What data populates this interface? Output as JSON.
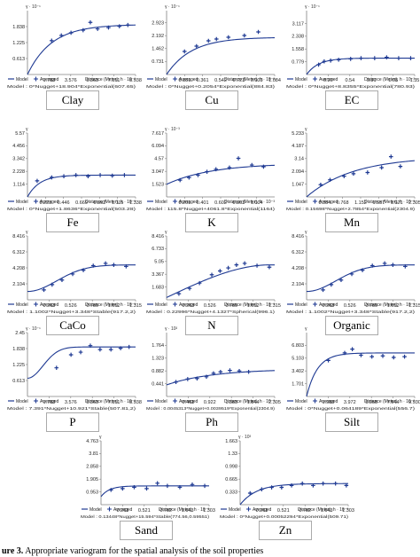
{
  "caption": {
    "label": "ure 3.",
    "text": "Appropriate variogram for the spatial analysis of the soil properties"
  },
  "colors": {
    "curve": "#1f3a93",
    "points": "#1f3a93",
    "axis": "#808080",
    "name_box_border": "#aaaaaa"
  },
  "legend_labels": {
    "model": "Model",
    "averaged": "Averaged"
  },
  "chart_data": [
    {
      "property": "Clay",
      "type": "scatter",
      "y_exponent": "γ · 10⁻¹",
      "x_axis_title": "Distance (Meter), h · 10⁻²",
      "x_ticks": [
        "1.788",
        "3.576",
        "5.363",
        "7.151",
        "8.938"
      ],
      "x_tick_values": [
        1.788,
        3.576,
        5.363,
        7.151,
        8.938
      ],
      "xlim": [
        0,
        8.938
      ],
      "y_ticks": [
        "0.613",
        "1.225",
        "1.838"
      ],
      "y_tick_values": [
        0.613,
        1.225,
        1.838
      ],
      "ylim": [
        0,
        2.45
      ],
      "points": [
        [
          2.0,
          1.3
        ],
        [
          2.8,
          1.5
        ],
        [
          3.6,
          1.6
        ],
        [
          4.6,
          1.7
        ],
        [
          5.2,
          2.0
        ],
        [
          5.8,
          1.75
        ],
        [
          6.7,
          1.8
        ],
        [
          7.6,
          1.85
        ],
        [
          8.3,
          1.9
        ]
      ],
      "model": {
        "sill": 1.92,
        "range": 2.0,
        "nugget": 0.0,
        "shape": "exp"
      },
      "model_text": "Model : 0*Nugget+18.904*Exponential(607.65)"
    },
    {
      "property": "Cu",
      "type": "scatter",
      "y_exponent": "γ · 10⁻¹",
      "x_axis_title": "Distance (Meter), h · 10⁻³",
      "x_ticks": [
        "0.181",
        "0.361",
        "0.542",
        "0.723",
        "0.903",
        "1.084"
      ],
      "x_tick_values": [
        0.181,
        0.361,
        0.542,
        0.723,
        0.903,
        1.084
      ],
      "xlim": [
        0,
        1.084
      ],
      "y_ticks": [
        "0.731",
        "1.462",
        "2.192",
        "2.923"
      ],
      "y_tick_values": [
        0.731,
        1.462,
        2.192,
        2.923
      ],
      "ylim": [
        0,
        3.6
      ],
      "points": [
        [
          0.18,
          1.3
        ],
        [
          0.3,
          1.6
        ],
        [
          0.42,
          1.9
        ],
        [
          0.5,
          2.0
        ],
        [
          0.62,
          2.1
        ],
        [
          0.78,
          2.2
        ],
        [
          0.92,
          2.4
        ]
      ],
      "model": {
        "sill": 2.1,
        "range": 0.25,
        "nugget": 0.0,
        "shape": "exp"
      },
      "model_text": "Model : 0*Nugget+0.2054*Exponential(884.83)"
    },
    {
      "property": "EC",
      "type": "scatter",
      "y_exponent": "γ · 10⁻¹",
      "x_axis_title": "Distance (Meter), h · 10⁻³",
      "x_ticks": [
        "0.27",
        "0.54",
        "0.81",
        "1.08",
        "1.35"
      ],
      "x_tick_values": [
        0.27,
        0.54,
        0.81,
        1.08,
        1.35
      ],
      "xlim": [
        0,
        1.35
      ],
      "y_ticks": [
        "0.779",
        "1.558",
        "2.338",
        "3.117"
      ],
      "y_tick_values": [
        0.779,
        1.558,
        2.338,
        3.117
      ],
      "ylim": [
        0,
        3.9
      ],
      "points": [
        [
          0.15,
          0.6
        ],
        [
          0.22,
          0.8
        ],
        [
          0.3,
          0.85
        ],
        [
          0.4,
          0.9
        ],
        [
          0.55,
          0.95
        ],
        [
          0.68,
          1.0
        ],
        [
          0.85,
          1.0
        ],
        [
          1.0,
          1.05
        ],
        [
          1.15,
          1.0
        ],
        [
          1.3,
          1.0
        ]
      ],
      "model": {
        "sill": 1.0,
        "range": 0.15,
        "nugget": 0.0,
        "shape": "exp"
      },
      "model_text": "Model : 0*Nugget+8.8355*Exponential(780.93)"
    },
    {
      "property": "Fe",
      "type": "scatter",
      "y_exponent": "γ",
      "x_axis_title": "Distance (Meter), h · 10⁻³",
      "x_ticks": [
        "0.223",
        "0.446",
        "0.669",
        "0.892",
        "1.115",
        "1.338"
      ],
      "x_tick_values": [
        0.223,
        0.446,
        0.669,
        0.892,
        1.115,
        1.338
      ],
      "xlim": [
        0,
        1.338
      ],
      "y_ticks": [
        "1.114",
        "2.228",
        "3.342",
        "4.456",
        "5.57"
      ],
      "y_tick_values": [
        1.114,
        2.228,
        3.342,
        4.456,
        5.57
      ],
      "ylim": [
        0,
        5.57
      ],
      "points": [
        [
          0.12,
          1.4
        ],
        [
          0.3,
          1.7
        ],
        [
          0.45,
          1.8
        ],
        [
          0.6,
          1.9
        ],
        [
          0.75,
          1.8
        ],
        [
          0.9,
          1.9
        ],
        [
          1.05,
          1.85
        ],
        [
          1.2,
          1.9
        ]
      ],
      "model": {
        "sill": 1.9,
        "range": 0.15,
        "nugget": 0.0,
        "shape": "exp"
      },
      "model_text": "Model : 0*Nugget+1.8636*Exponential(503.28)"
    },
    {
      "property": "K",
      "type": "scatter",
      "y_exponent": "γ · 10⁻³",
      "x_axis_title": "Distance (Meter), h · 10⁻³",
      "x_ticks": [
        "0.201",
        "0.401",
        "0.602",
        "0.803",
        "1.004"
      ],
      "x_tick_values": [
        0.201,
        0.401,
        0.602,
        0.803,
        1.004
      ],
      "xlim": [
        0,
        1.204
      ],
      "y_ticks": [
        "1.523",
        "3.047",
        "4.57",
        "6.094",
        "7.617"
      ],
      "y_tick_values": [
        1.523,
        3.047,
        4.57,
        6.094,
        7.617
      ],
      "ylim": [
        0,
        7.617
      ],
      "points": [
        [
          0.15,
          2.0
        ],
        [
          0.25,
          2.3
        ],
        [
          0.35,
          2.6
        ],
        [
          0.45,
          3.0
        ],
        [
          0.55,
          3.3
        ],
        [
          0.7,
          3.5
        ],
        [
          0.8,
          4.6
        ],
        [
          0.95,
          3.8
        ],
        [
          1.08,
          3.6
        ]
      ],
      "model": {
        "sill": 4.0,
        "range": 0.5,
        "nugget": 1.5,
        "shape": "exp"
      },
      "model_text": "Model : 115.8*Nugget+4061.8*Exponential(1164)"
    },
    {
      "property": "Mn",
      "type": "scatter",
      "y_exponent": "γ",
      "x_axis_title": "Distance (Meter), h · 10⁻³",
      "x_ticks": [
        "0.384",
        "0.768",
        "1.152",
        "1.537",
        "1.921",
        "2.305"
      ],
      "x_tick_values": [
        0.384,
        0.768,
        1.152,
        1.537,
        1.921,
        2.305
      ],
      "xlim": [
        0,
        2.305
      ],
      "y_ticks": [
        "1.047",
        "2.094",
        "3.14",
        "4.187",
        "5.233"
      ],
      "y_tick_values": [
        1.047,
        2.094,
        3.14,
        4.187,
        5.233
      ],
      "ylim": [
        0,
        5.233
      ],
      "points": [
        [
          0.3,
          1.0
        ],
        [
          0.5,
          1.4
        ],
        [
          0.8,
          1.7
        ],
        [
          1.0,
          1.9
        ],
        [
          1.3,
          2.0
        ],
        [
          1.6,
          2.4
        ],
        [
          1.8,
          3.3
        ],
        [
          2.0,
          2.5
        ]
      ],
      "model": {
        "sill": 3.3,
        "range": 1.0,
        "nugget": 0.0,
        "shape": "exp"
      },
      "model_text": "Model : 0.15698*Nugget+2.7854*Exponential(2304.9)"
    },
    {
      "property": "CaCo",
      "type": "scatter",
      "y_exponent": "γ",
      "x_axis_title": "Distance (Meter), h · 10⁻³",
      "x_ticks": [
        "0.263",
        "0.526",
        "0.789",
        "1.052",
        "1.315"
      ],
      "x_tick_values": [
        0.263,
        0.526,
        0.789,
        1.052,
        1.315
      ],
      "xlim": [
        0,
        1.315
      ],
      "y_ticks": [
        "2.104",
        "4.208",
        "6.312",
        "8.416"
      ],
      "y_tick_values": [
        2.104,
        4.208,
        6.312,
        8.416
      ],
      "ylim": [
        0,
        8.416
      ],
      "points": [
        [
          0.2,
          1.3
        ],
        [
          0.3,
          2.0
        ],
        [
          0.42,
          2.6
        ],
        [
          0.55,
          3.4
        ],
        [
          0.68,
          3.9
        ],
        [
          0.8,
          4.5
        ],
        [
          0.95,
          4.8
        ],
        [
          1.05,
          4.6
        ],
        [
          1.2,
          4.4
        ]
      ],
      "model": {
        "sill": 4.6,
        "range": 0.5,
        "nugget": 1.1,
        "shape": "gauss"
      },
      "model_text": "Model : 1.1002*Nugget+3.348*Stable(917.2,2)"
    },
    {
      "property": "N",
      "type": "scatter",
      "y_exponent": "γ",
      "x_axis_title": "Distance (Meter), h · 10⁻³",
      "x_ticks": [
        "0.263",
        "0.526",
        "0.789",
        "1.052",
        "1.315"
      ],
      "x_tick_values": [
        0.263,
        0.526,
        0.789,
        1.052,
        1.315
      ],
      "xlim": [
        0,
        1.315
      ],
      "y_ticks": [
        "1.683",
        "3.367",
        "5.05",
        "6.733",
        "8.416"
      ],
      "y_tick_values": [
        1.683,
        3.367,
        5.05,
        6.733,
        8.416
      ],
      "ylim": [
        0,
        8.416
      ],
      "points": [
        [
          0.15,
          0.8
        ],
        [
          0.28,
          1.5
        ],
        [
          0.4,
          2.2
        ],
        [
          0.55,
          3.3
        ],
        [
          0.65,
          3.8
        ],
        [
          0.75,
          4.2
        ],
        [
          0.85,
          4.6
        ],
        [
          0.95,
          4.8
        ],
        [
          1.1,
          4.5
        ],
        [
          1.25,
          4.3
        ]
      ],
      "model": {
        "sill": 4.6,
        "range": 0.9,
        "nugget": 0.3,
        "shape": "sph"
      },
      "model_text": "Model : 0.22996*Nugget+4.1327*Spherical(996.1)"
    },
    {
      "property": "Organic",
      "type": "scatter",
      "y_exponent": "γ",
      "x_axis_title": "Distance (Meter), h · 10⁻³",
      "x_ticks": [
        "0.263",
        "0.526",
        "0.789",
        "1.052",
        "1.315"
      ],
      "x_tick_values": [
        0.263,
        0.526,
        0.789,
        1.052,
        1.315
      ],
      "xlim": [
        0,
        1.315
      ],
      "y_ticks": [
        "2.104",
        "4.208",
        "6.312",
        "8.416"
      ],
      "y_tick_values": [
        2.104,
        4.208,
        6.312,
        8.416
      ],
      "ylim": [
        0,
        8.416
      ],
      "points": [
        [
          0.2,
          1.3
        ],
        [
          0.3,
          2.0
        ],
        [
          0.42,
          2.6
        ],
        [
          0.55,
          3.4
        ],
        [
          0.68,
          3.9
        ],
        [
          0.8,
          4.5
        ],
        [
          0.95,
          4.8
        ],
        [
          1.05,
          4.6
        ],
        [
          1.2,
          4.4
        ]
      ],
      "model": {
        "sill": 4.6,
        "range": 0.5,
        "nugget": 1.1,
        "shape": "gauss"
      },
      "model_text": "Model : 1.1002*Nugget+3.348*Stable(917.2,2)"
    },
    {
      "property": "P",
      "type": "scatter",
      "y_exponent": "γ · 10⁻¹",
      "x_axis_title": "Distance (Meter), h · 10⁻²",
      "x_ticks": [
        "1.788",
        "3.576",
        "5.363",
        "7.151",
        "8.938"
      ],
      "x_tick_values": [
        1.788,
        3.576,
        5.363,
        7.151,
        8.938
      ],
      "xlim": [
        0,
        8.938
      ],
      "y_ticks": [
        "0.613",
        "1.225",
        "1.838",
        "2.45"
      ],
      "y_tick_values": [
        0.613,
        1.225,
        1.838,
        2.45
      ],
      "ylim": [
        0,
        2.45
      ],
      "points": [
        [
          2.4,
          1.1
        ],
        [
          3.6,
          1.6
        ],
        [
          4.4,
          1.7
        ],
        [
          5.2,
          1.95
        ],
        [
          6.0,
          1.8
        ],
        [
          6.9,
          1.8
        ],
        [
          7.7,
          1.85
        ],
        [
          8.4,
          1.9
        ]
      ],
      "model": {
        "sill": 1.9,
        "range": 1.8,
        "nugget": 0.7,
        "shape": "gauss"
      },
      "model_text": "Model : 7.391*Nugget+10.921*Stable(507.81,2)"
    },
    {
      "property": "Ph",
      "type": "scatter",
      "y_exponent": "γ · 10²",
      "x_axis_title": "Distance (Meter), h · 10⁻³",
      "x_ticks": [
        "0.461",
        "0.922",
        "1.383",
        "1.844",
        "2.305"
      ],
      "x_tick_values": [
        0.461,
        0.922,
        1.383,
        1.844,
        2.305
      ],
      "xlim": [
        0,
        2.305
      ],
      "y_ticks": [
        "0.441",
        "0.882",
        "1.323",
        "1.764"
      ],
      "y_tick_values": [
        0.441,
        0.882,
        1.323,
        1.764
      ],
      "ylim": [
        0,
        2.205
      ],
      "points": [
        [
          0.2,
          0.5
        ],
        [
          0.45,
          0.6
        ],
        [
          0.65,
          0.62
        ],
        [
          0.85,
          0.68
        ],
        [
          1.0,
          0.8
        ],
        [
          1.15,
          0.85
        ],
        [
          1.35,
          0.9
        ],
        [
          1.55,
          0.88
        ],
        [
          1.75,
          0.85
        ]
      ],
      "model": {
        "sill": 0.95,
        "range": 1.0,
        "nugget": 0.4,
        "shape": "exp"
      },
      "model_text": "Model : 0.0045313*Nugget+0.0039519*Exponential(2304.9)"
    },
    {
      "property": "Silt",
      "type": "scatter",
      "y_exponent": "γ",
      "x_axis_title": "Distance (Meter), h · 10⁻²",
      "x_ticks": [
        "1.986",
        "3.972",
        "5.958",
        "7.944",
        "9.930"
      ],
      "x_tick_values": [
        1.986,
        3.972,
        5.958,
        7.944,
        9.93
      ],
      "xlim": [
        0,
        9.93
      ],
      "y_ticks": [
        "1.701",
        "3.402",
        "5.103",
        "6.803"
      ],
      "y_tick_values": [
        1.701,
        3.402,
        5.103,
        6.803
      ],
      "ylim": [
        0,
        8.504
      ],
      "points": [
        [
          2.0,
          4.8
        ],
        [
          3.5,
          5.8
        ],
        [
          4.2,
          6.3
        ],
        [
          5.0,
          5.5
        ],
        [
          6.0,
          5.3
        ],
        [
          7.0,
          5.4
        ],
        [
          8.0,
          5.2
        ],
        [
          9.0,
          5.3
        ]
      ],
      "model": {
        "sill": 5.8,
        "range": 1.0,
        "nugget": 0.0,
        "shape": "exp"
      },
      "model_text": "Model : 0*Nugget+0.064189*Exponential(556.7)"
    },
    {
      "property": "Sand",
      "type": "scatter",
      "y_exponent": "γ",
      "x_axis_title": "Distance (Meter), h · 10⁻³",
      "x_ticks": [
        "0.261",
        "0.521",
        "0.782",
        "1.043",
        "1.303"
      ],
      "x_tick_values": [
        0.261,
        0.521,
        0.782,
        1.043,
        1.303
      ],
      "xlim": [
        0,
        1.303
      ],
      "y_ticks": [
        "0.953",
        "1.905",
        "2.858",
        "3.81",
        "4.763"
      ],
      "y_tick_values": [
        0.953,
        1.905,
        2.858,
        3.81,
        4.763
      ],
      "ylim": [
        0,
        4.763
      ],
      "points": [
        [
          0.12,
          1.1
        ],
        [
          0.26,
          1.2
        ],
        [
          0.4,
          1.3
        ],
        [
          0.55,
          1.2
        ],
        [
          0.68,
          1.6
        ],
        [
          0.8,
          1.4
        ],
        [
          0.95,
          1.3
        ],
        [
          1.1,
          1.5
        ],
        [
          1.25,
          1.4
        ]
      ],
      "model": {
        "sill": 1.4,
        "range": 0.1,
        "nugget": 0.6,
        "shape": "exp"
      },
      "model_text": "Model : 0.13448*Nugget+15.594*Stable(774.56,0.59551)"
    },
    {
      "property": "Zn",
      "type": "scatter",
      "y_exponent": "γ · 10³",
      "x_axis_title": "Distance (Meter), h · 10⁻³",
      "x_ticks": [
        "0.261",
        "0.521",
        "0.782",
        "1.043",
        "1.303"
      ],
      "x_tick_values": [
        0.261,
        0.521,
        0.782,
        1.043,
        1.303
      ],
      "xlim": [
        0,
        1.303
      ],
      "y_ticks": [
        "0.333",
        "0.665",
        "0.998",
        "1.33",
        "1.663"
      ],
      "y_tick_values": [
        0.333,
        0.665,
        0.998,
        1.33,
        1.663
      ],
      "ylim": [
        0,
        1.663
      ],
      "points": [
        [
          0.12,
          0.3
        ],
        [
          0.26,
          0.4
        ],
        [
          0.38,
          0.45
        ],
        [
          0.5,
          0.45
        ],
        [
          0.62,
          0.5
        ],
        [
          0.75,
          0.55
        ],
        [
          0.88,
          0.5
        ],
        [
          1.0,
          0.55
        ],
        [
          1.15,
          0.55
        ],
        [
          1.28,
          0.5
        ]
      ],
      "model": {
        "sill": 0.55,
        "range": 0.2,
        "nugget": 0.0,
        "shape": "exp"
      },
      "model_text": "Model : 0*Nugget+0.00052294*Exponential(509.71)"
    }
  ]
}
